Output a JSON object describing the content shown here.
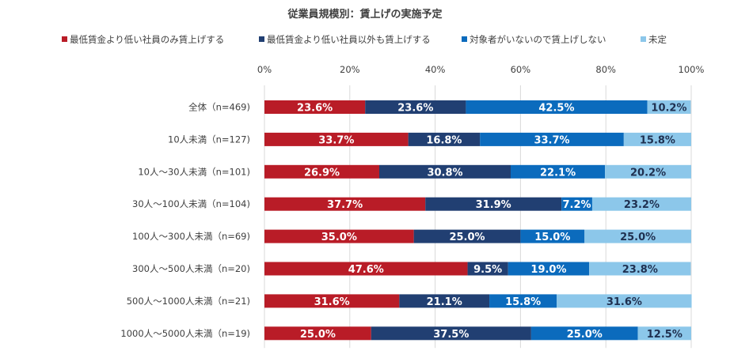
{
  "chart_data": {
    "type": "bar",
    "orientation": "horizontal",
    "stacked": true,
    "percent_stacked": true,
    "title": "従業員規模別：賃上げの実施予定",
    "legend_position": "top",
    "xlim": [
      0,
      100
    ],
    "ticks": [
      "0%",
      "20%",
      "40%",
      "60%",
      "80%",
      "100%"
    ],
    "tick_values": [
      0,
      20,
      40,
      60,
      80,
      100
    ],
    "categories": [
      "全体（n=469)",
      "10人未満（n=127)",
      "10人～30人未満（n=101)",
      "30人～100人未満（n=104)",
      "100人～300人未満（n=69)",
      "300人～500人未満（n=20)",
      "500人～1000人未満（n=21)",
      "1000人～5000人未満（n=19)"
    ],
    "series": [
      {
        "name": "最低賃金より低い社員のみ賃上げする",
        "color": "#b91c27",
        "label_color": "#ffffff",
        "values": [
          23.6,
          33.7,
          26.9,
          37.7,
          35.0,
          47.6,
          31.6,
          25.0
        ],
        "labels": [
          "23.6%",
          "33.7%",
          "26.9%",
          "37.7%",
          "35.0%",
          "47.6%",
          "31.6%",
          "25.0%"
        ]
      },
      {
        "name": "最低賃金より低い社員以外も賃上げする",
        "color": "#213f72",
        "label_color": "#ffffff",
        "values": [
          23.6,
          16.8,
          30.8,
          31.9,
          25.0,
          9.5,
          21.1,
          37.5
        ],
        "labels": [
          "23.6%",
          "16.8%",
          "30.8%",
          "31.9%",
          "25.0%",
          "9.5%",
          "21.1%",
          "37.5%"
        ]
      },
      {
        "name": "対象者がいないので賃上げしない",
        "color": "#0b6bbd",
        "label_color": "#ffffff",
        "values": [
          42.5,
          33.7,
          22.1,
          7.2,
          15.0,
          19.0,
          15.8,
          25.0
        ],
        "labels": [
          "42.5%",
          "33.7%",
          "22.1%",
          "7.2%",
          "15.0%",
          "19.0%",
          "15.8%",
          "25.0%"
        ]
      },
      {
        "name": "未定",
        "color": "#8cc7ea",
        "label_color": "#1f3050",
        "values": [
          10.2,
          15.8,
          20.2,
          23.2,
          25.0,
          23.8,
          31.6,
          12.5
        ],
        "labels": [
          "10.2%",
          "15.8%",
          "20.2%",
          "23.2%",
          "25.0%",
          "23.8%",
          "31.6%",
          "12.5%"
        ]
      }
    ]
  }
}
